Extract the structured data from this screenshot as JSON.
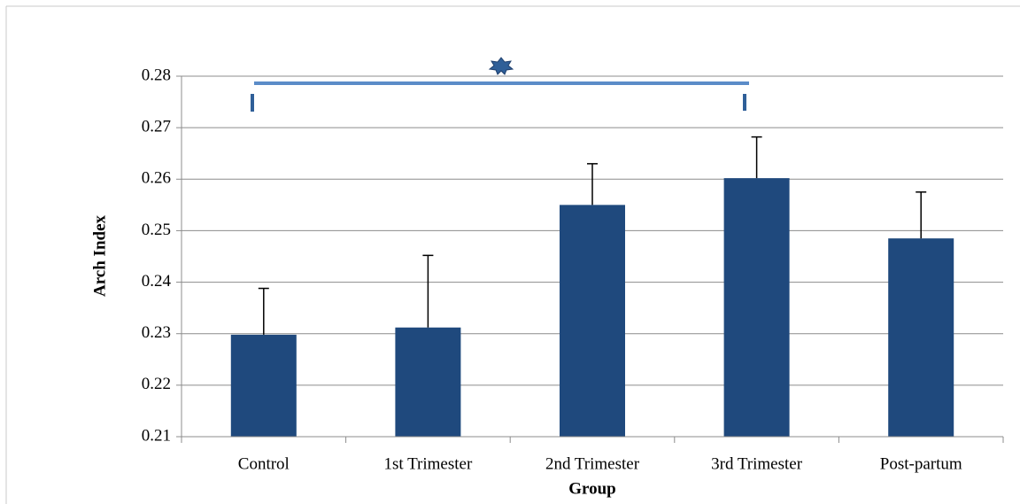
{
  "chart_data": {
    "type": "bar",
    "categories": [
      "Control",
      "1st Trimester",
      "2nd Trimester",
      "3rd Trimester",
      "Post-partum"
    ],
    "values": [
      0.2298,
      0.2312,
      0.255,
      0.2602,
      0.2485
    ],
    "errors": [
      0.009,
      0.014,
      0.008,
      0.008,
      0.009
    ],
    "color": "#1f497d",
    "x_label": "Group",
    "y_label": "Arch Index",
    "ylim": [
      0.21,
      0.28
    ],
    "yticks": [
      0.21,
      0.22,
      0.23,
      0.24,
      0.25,
      0.26,
      0.27,
      0.28
    ],
    "grid": true
  }
}
